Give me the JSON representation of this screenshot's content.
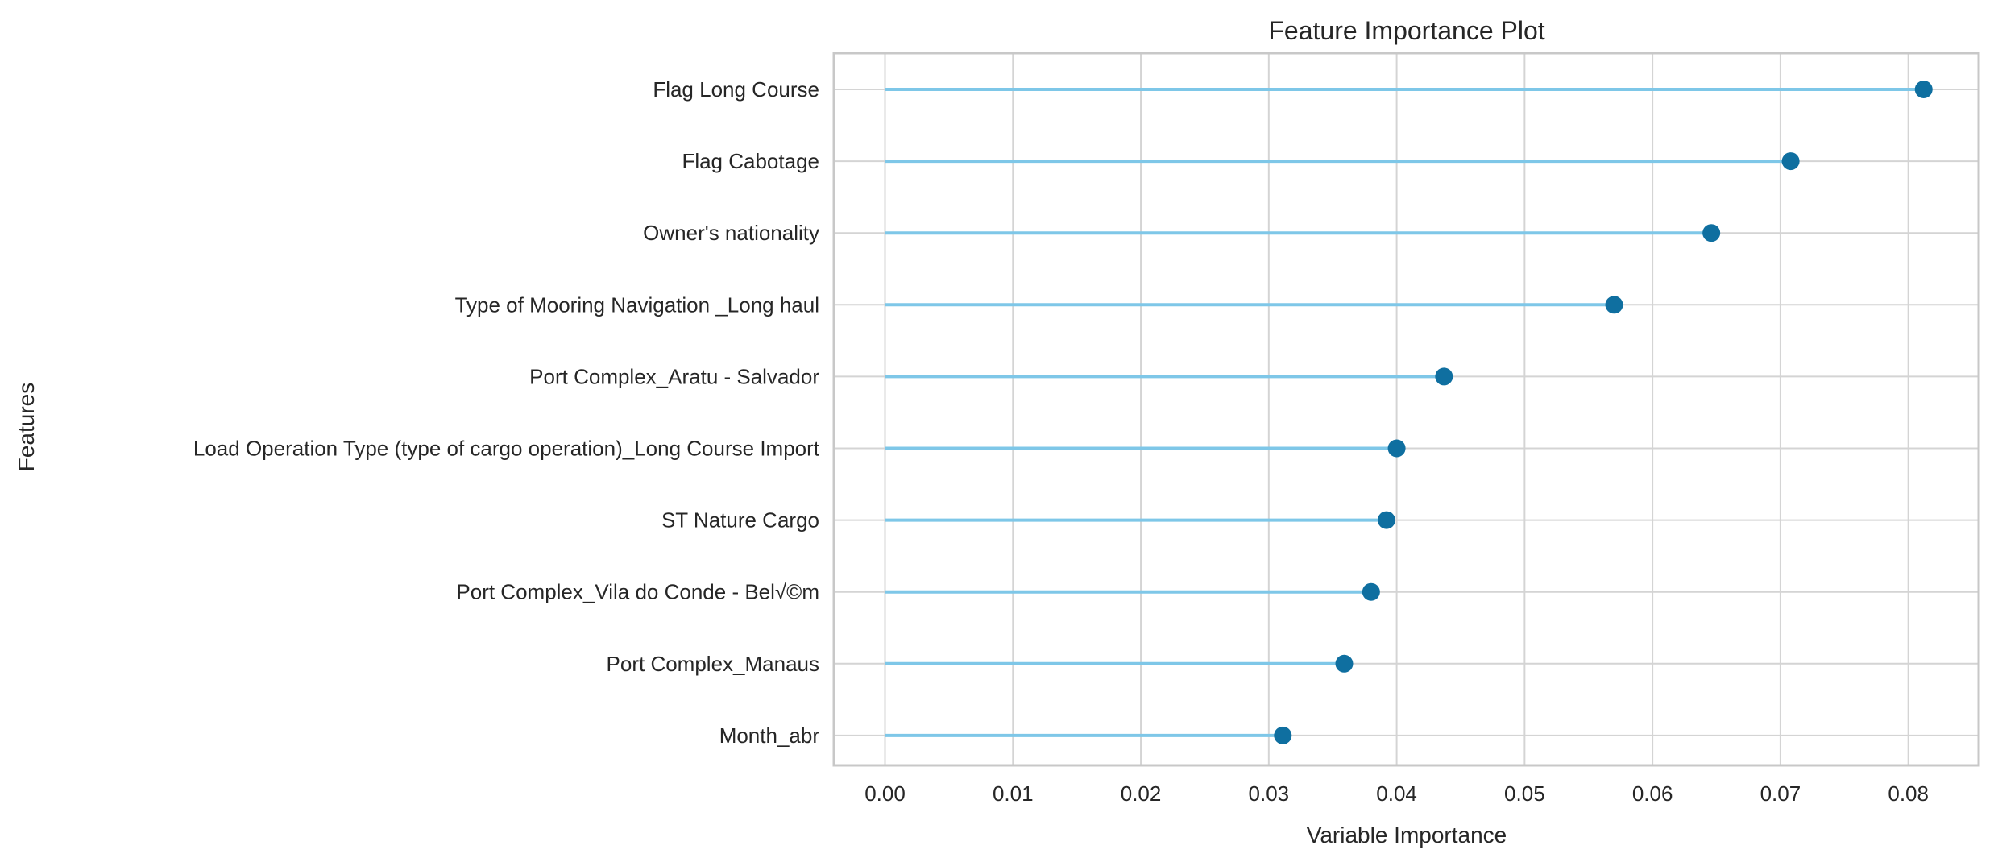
{
  "chart_data": {
    "type": "lollipop",
    "title": "Feature Importance Plot",
    "xlabel": "Variable Importance",
    "ylabel": "Features",
    "xlim": [
      -0.004,
      0.0855
    ],
    "xticks": [
      0.0,
      0.01,
      0.02,
      0.03,
      0.04,
      0.05,
      0.06,
      0.07,
      0.08
    ],
    "xtick_labels": [
      "0.00",
      "0.01",
      "0.02",
      "0.03",
      "0.04",
      "0.05",
      "0.06",
      "0.07",
      "0.08"
    ],
    "grid": true,
    "categories": [
      "Flag Long Course",
      "Flag Cabotage",
      "Owner's nationality",
      "Type of Mooring Navigation _Long haul",
      "Port Complex_Aratu - Salvador",
      "Load Operation Type (type of cargo operation)_Long Course Import",
      "ST Nature Cargo",
      "Port Complex_Vila do Conde - Bel√©m",
      "Port Complex_Manaus",
      "Month_abr"
    ],
    "values": [
      0.0812,
      0.0708,
      0.0646,
      0.057,
      0.0437,
      0.04,
      0.0392,
      0.038,
      0.0359,
      0.0311
    ],
    "colors": {
      "stem": "#7ec7e8",
      "marker": "#0f6fa0",
      "grid": "#d4d4d4",
      "frame": "#c8c8c8"
    }
  }
}
